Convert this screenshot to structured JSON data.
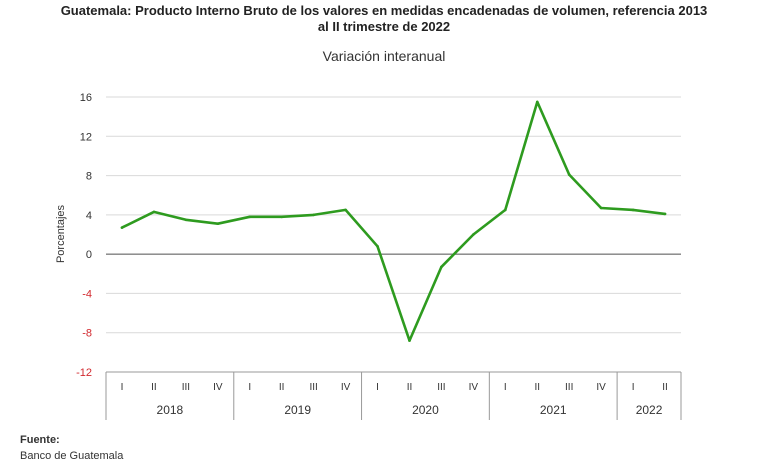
{
  "title_line1": "Guatemala: Producto Interno Bruto de los valores en medidas encadenadas  de volumen, referencia 2013",
  "title_line2": "al II trimestre de 2022",
  "subtitle": "Variación interanual",
  "source_label": "Fuente:",
  "source_text": "Banco de Guatemala",
  "colors": {
    "line": "#2e9b1f",
    "grid": "#d9d9d9",
    "zero": "#7f7f7f",
    "negative": "#d2282e"
  },
  "chart_data": {
    "type": "line",
    "ylabel": "Porcentajes",
    "ylim": [
      -12,
      16
    ],
    "yticks": [
      16,
      12,
      8,
      4,
      0,
      -4,
      -8,
      -12
    ],
    "grid": true,
    "years": [
      {
        "label": "2018",
        "quarters": [
          "I",
          "II",
          "III",
          "IV"
        ]
      },
      {
        "label": "2019",
        "quarters": [
          "I",
          "II",
          "III",
          "IV"
        ]
      },
      {
        "label": "2020",
        "quarters": [
          "I",
          "II",
          "III",
          "IV"
        ]
      },
      {
        "label": "2021",
        "quarters": [
          "I",
          "II",
          "III",
          "IV"
        ]
      },
      {
        "label": "2022",
        "quarters": [
          "I",
          "II"
        ]
      }
    ],
    "values": [
      2.7,
      4.3,
      3.5,
      3.1,
      3.8,
      3.8,
      4.0,
      4.5,
      0.8,
      -8.8,
      -1.3,
      2.0,
      4.5,
      15.5,
      8.1,
      4.7,
      4.5,
      4.1
    ]
  }
}
